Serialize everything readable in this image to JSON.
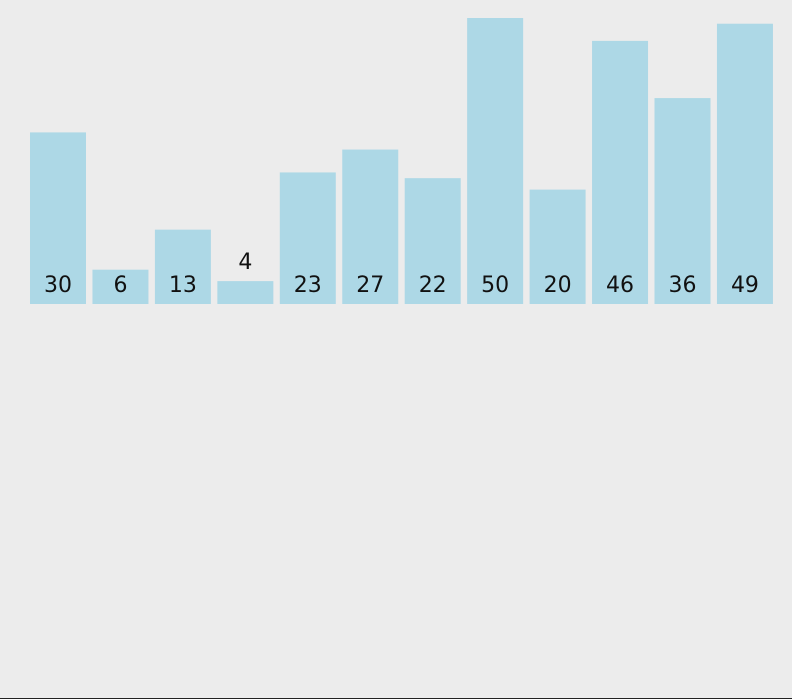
{
  "chart_data": {
    "type": "bar",
    "values": [
      30,
      6,
      13,
      4,
      23,
      27,
      22,
      50,
      20,
      46,
      36,
      49
    ],
    "color": "#add8e6"
  }
}
